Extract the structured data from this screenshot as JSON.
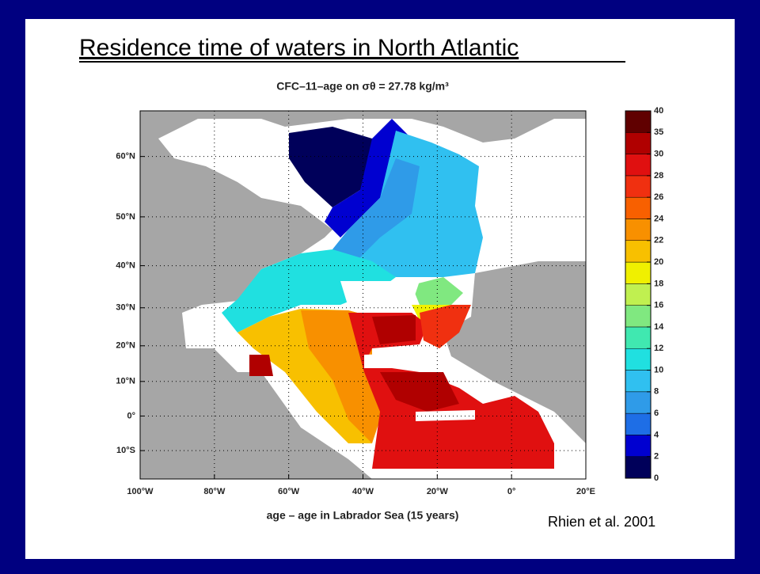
{
  "title": "Residence time of waters in North Atlantic",
  "figure": {
    "type": "map",
    "title": "CFC–11–age on σθ = 27.78 kg/m³",
    "xlabel": "age – age in Labrador Sea (15 years)",
    "projection": "mercator",
    "xlim": [
      -100,
      20
    ],
    "ylim": [
      -18,
      66
    ],
    "xticks": [
      {
        "value": -100,
        "label": "100°W"
      },
      {
        "value": -80,
        "label": "80°W"
      },
      {
        "value": -60,
        "label": "60°W"
      },
      {
        "value": -40,
        "label": "40°W"
      },
      {
        "value": -20,
        "label": "20°W"
      },
      {
        "value": 0,
        "label": "0°"
      },
      {
        "value": 20,
        "label": "20°E"
      }
    ],
    "yticks": [
      {
        "value": 60,
        "label": "60°N"
      },
      {
        "value": 50,
        "label": "50°N"
      },
      {
        "value": 40,
        "label": "40°N"
      },
      {
        "value": 30,
        "label": "30°N"
      },
      {
        "value": 20,
        "label": "20°N"
      },
      {
        "value": 10,
        "label": "10°N"
      },
      {
        "value": 0,
        "label": "0°"
      },
      {
        "value": -10,
        "label": "10°S"
      }
    ],
    "grid": true,
    "colorbar": {
      "ticks": [
        0,
        2,
        4,
        6,
        8,
        10,
        12,
        14,
        16,
        18,
        20,
        22,
        24,
        26,
        28,
        30,
        35,
        40
      ],
      "colors": [
        "#00005a",
        "#0000d0",
        "#1e6ee6",
        "#2f9be8",
        "#30c0f0",
        "#20e0e0",
        "#40e8b0",
        "#80e880",
        "#c0f050",
        "#f0f000",
        "#f8c000",
        "#f89000",
        "#f86000",
        "#f03010",
        "#e01010",
        "#b00000",
        "#600000"
      ]
    }
  },
  "citation": "Rhien et al. 2001"
}
